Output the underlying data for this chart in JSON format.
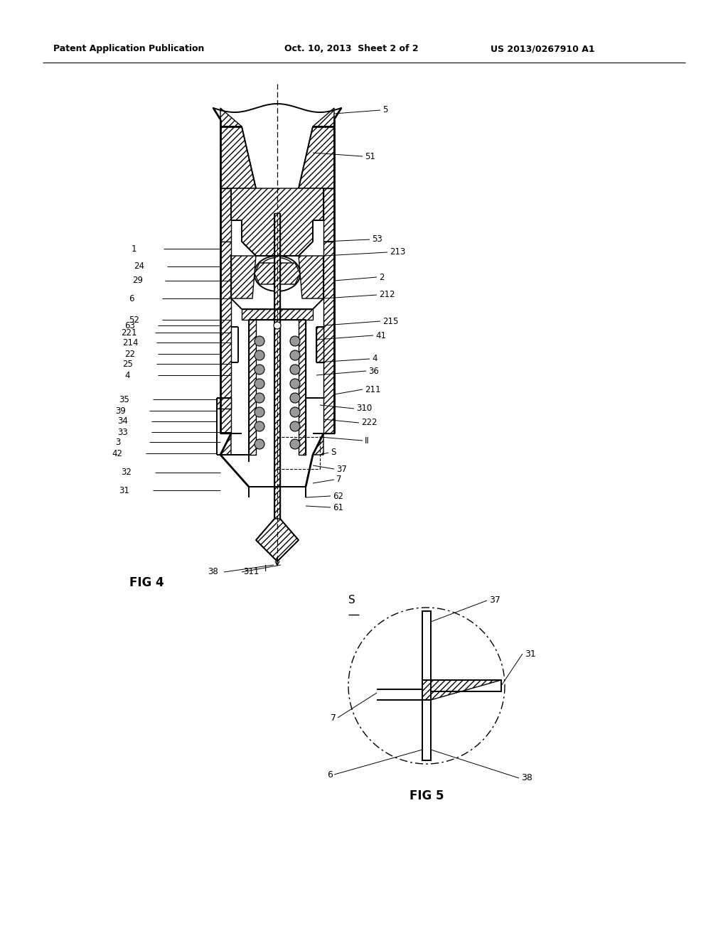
{
  "header_left": "Patent Application Publication",
  "header_mid": "Oct. 10, 2013  Sheet 2 of 2",
  "header_right": "US 2013/0267910 A1",
  "fig4_label": "FIG 4",
  "fig5_label": "FIG 5",
  "bg_color": "#ffffff",
  "line_color": "#000000"
}
